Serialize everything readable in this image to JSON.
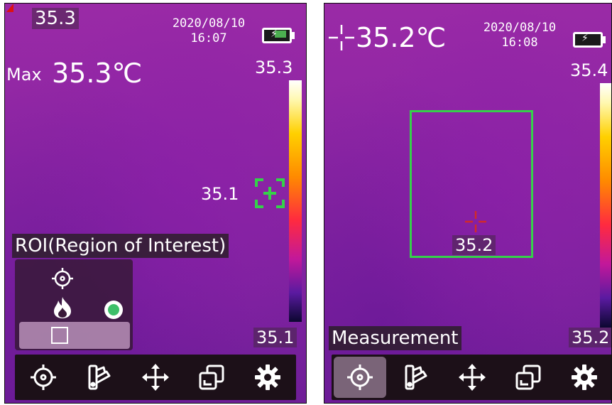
{
  "left_screen": {
    "spot_temp": "35.3",
    "date": "2020/08/10",
    "time": "16:07",
    "max_label": "Max",
    "max_value": "35.3℃",
    "scale_max": "35.3",
    "scale_min": "35.1",
    "hot_spot_reading": "35.1",
    "menu_label": "ROI(Region of Interest)",
    "roi_options": [
      "center-point",
      "hot-spot",
      "area-box"
    ],
    "roi_selected": "area-box",
    "toolbar_icons": [
      "crosshair-icon",
      "palette-icon",
      "move-icon",
      "overlay-icon",
      "gear-icon"
    ],
    "toolbar_active": null
  },
  "right_screen": {
    "center_temp": "35.2℃",
    "date": "2020/08/10",
    "time": "16:08",
    "scale_max": "35.4",
    "scale_min": "35.2",
    "box_reading": "35.2",
    "menu_label": "Measurement",
    "toolbar_icons": [
      "crosshair-icon",
      "palette-icon",
      "move-icon",
      "overlay-icon",
      "gear-icon"
    ],
    "toolbar_active": "crosshair-icon"
  },
  "colors": {
    "accent_green": "#35d14a",
    "crosshair_red": "#d12a2a",
    "battery_green": "#4caf50"
  }
}
